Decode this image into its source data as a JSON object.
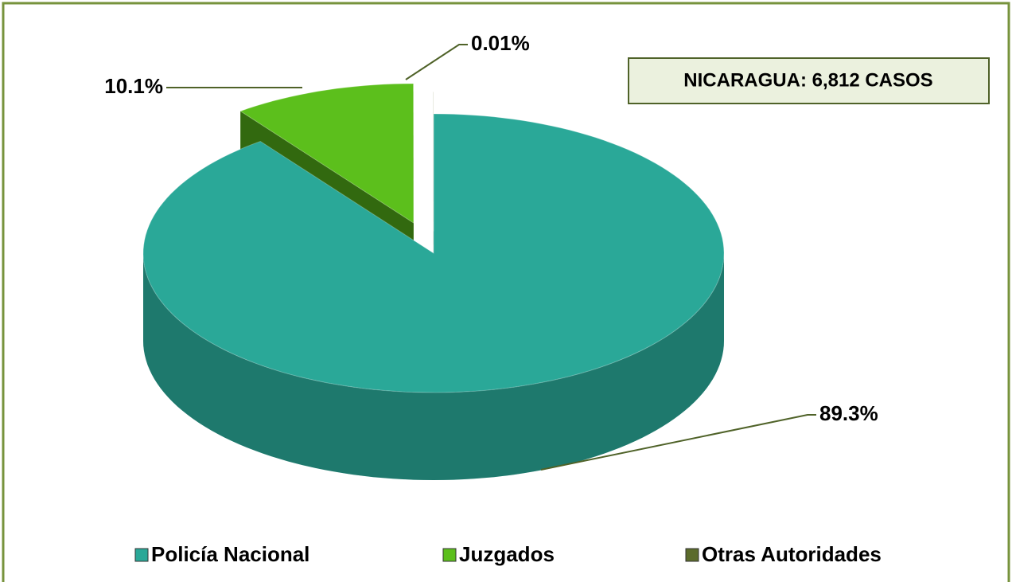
{
  "chart_data": {
    "type": "pie",
    "annotation": "NICARAGUA: 6,812 CASOS",
    "categories": [
      "Policía Nacional",
      "Juzgados",
      "Otras Autoridades"
    ],
    "values": [
      89.3,
      10.1,
      0.01
    ],
    "value_labels": [
      "89.3%",
      "10.1%",
      "0.01%"
    ],
    "colors": [
      "#2aa898",
      "#5cbf1c",
      "#5b6b2b"
    ],
    "legend": "bottom"
  }
}
